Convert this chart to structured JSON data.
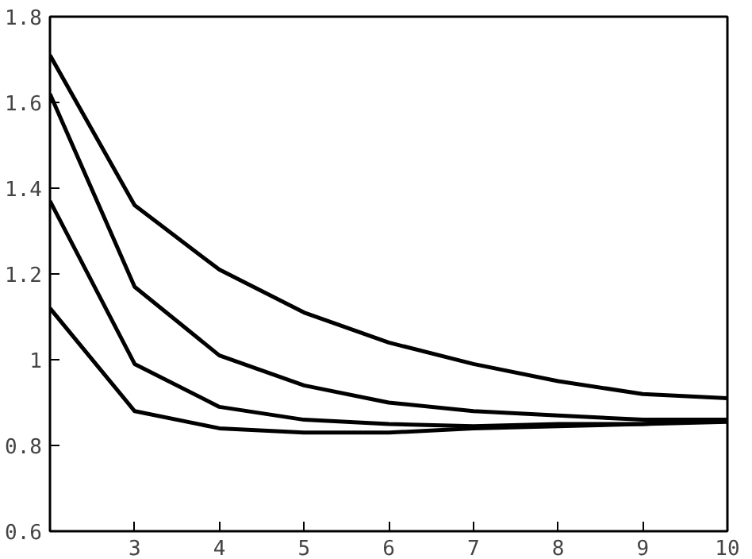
{
  "chart_data": {
    "type": "line",
    "x": [
      2,
      3,
      4,
      5,
      6,
      7,
      8,
      9,
      10
    ],
    "series": [
      {
        "color": "#000000",
        "values": [
          1.71,
          1.36,
          1.21,
          1.11,
          1.04,
          0.99,
          0.95,
          0.92,
          0.91
        ]
      },
      {
        "color": "#000000",
        "values": [
          1.62,
          1.17,
          1.01,
          0.94,
          0.9,
          0.88,
          0.87,
          0.86,
          0.86
        ]
      },
      {
        "color": "#000000",
        "values": [
          1.37,
          0.99,
          0.89,
          0.86,
          0.85,
          0.845,
          0.85,
          0.85,
          0.855
        ]
      },
      {
        "color": "#000000",
        "values": [
          1.12,
          0.88,
          0.84,
          0.83,
          0.83,
          0.84,
          0.845,
          0.85,
          0.86
        ]
      }
    ],
    "xlim": [
      2,
      10
    ],
    "ylim": [
      0.6,
      1.8
    ],
    "xticks": [
      3,
      4,
      5,
      6,
      7,
      8,
      9,
      10
    ],
    "yticks": [
      0.6,
      0.8,
      {
        "value": 1,
        "label": "1"
      },
      1.2,
      1.4,
      1.6,
      1.8
    ],
    "grid": false,
    "marker": "none",
    "line_style": "solid"
  }
}
